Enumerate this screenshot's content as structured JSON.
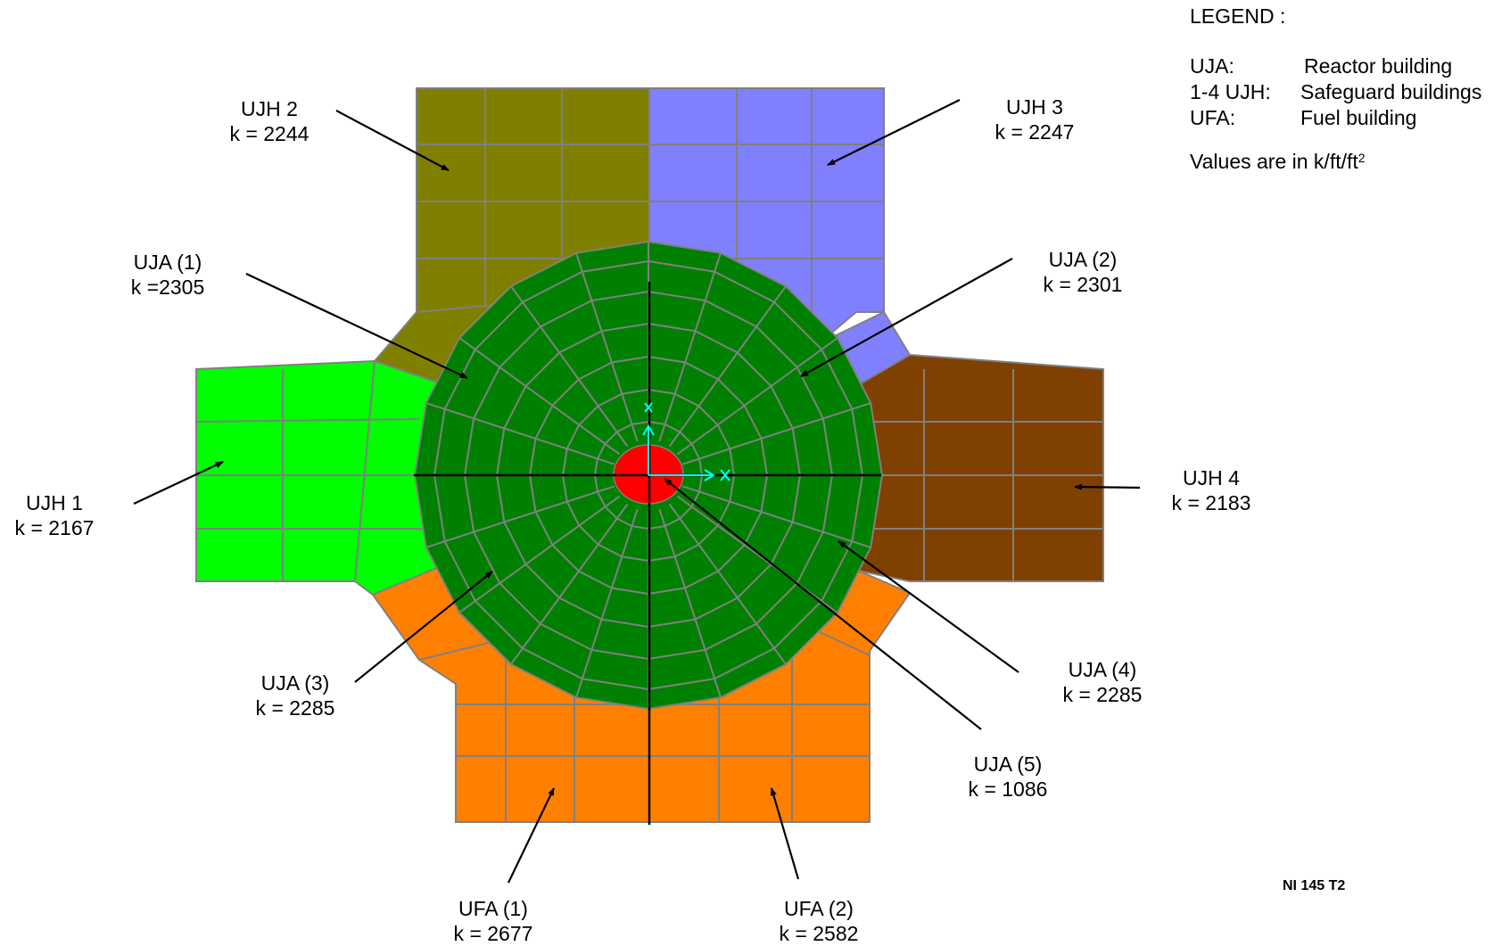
{
  "legend": {
    "title": "LEGEND :",
    "items": [
      {
        "key": "UJA:",
        "value": "Reactor building"
      },
      {
        "key": "1-4 UJH:",
        "value": "Safeguard buildings"
      },
      {
        "key": "UFA:",
        "value": "Fuel building"
      }
    ],
    "note_prefix": "Values are in k/ft/ft",
    "note_superscript": "2"
  },
  "regions": [
    {
      "id": "UJH 2",
      "name": "UJH 2",
      "k_text": "k = 2244",
      "k": 2244,
      "color": "#808000"
    },
    {
      "id": "UJH 3",
      "name": "UJH 3",
      "k_text": "k = 2247",
      "k": 2247,
      "color": "#8080ff"
    },
    {
      "id": "UJA (1)",
      "name": "UJA (1)",
      "k_text": "k =2305",
      "k": 2305,
      "color": "#008000"
    },
    {
      "id": "UJA (2)",
      "name": "UJA (2)",
      "k_text": "k = 2301",
      "k": 2301,
      "color": "#008000"
    },
    {
      "id": "UJH 1",
      "name": "UJH 1",
      "k_text": "k = 2167",
      "k": 2167,
      "color": "#00ff00"
    },
    {
      "id": "UJH 4",
      "name": "UJH 4",
      "k_text": "k = 2183",
      "k": 2183,
      "color": "#804000"
    },
    {
      "id": "UJA (3)",
      "name": "UJA (3)",
      "k_text": "k = 2285",
      "k": 2285,
      "color": "#008000"
    },
    {
      "id": "UJA (4)",
      "name": "UJA (4)",
      "k_text": "k = 2285",
      "k": 2285,
      "color": "#008000"
    },
    {
      "id": "UJA (5)",
      "name": "UJA (5)",
      "k_text": "k = 1086",
      "k": 1086,
      "color": "#ff0000"
    },
    {
      "id": "UFA (1)",
      "name": "UFA (1)",
      "k_text": "k = 2677",
      "k": 2677,
      "color": "#ff8000"
    },
    {
      "id": "UFA (2)",
      "name": "UFA (2)",
      "k_text": "k = 2582",
      "k": 2582,
      "color": "#ff8000"
    }
  ],
  "figure_code": "NI 145 T2",
  "colors": {
    "mesh_line": "#808080",
    "axis_marker": "#00ffff"
  }
}
